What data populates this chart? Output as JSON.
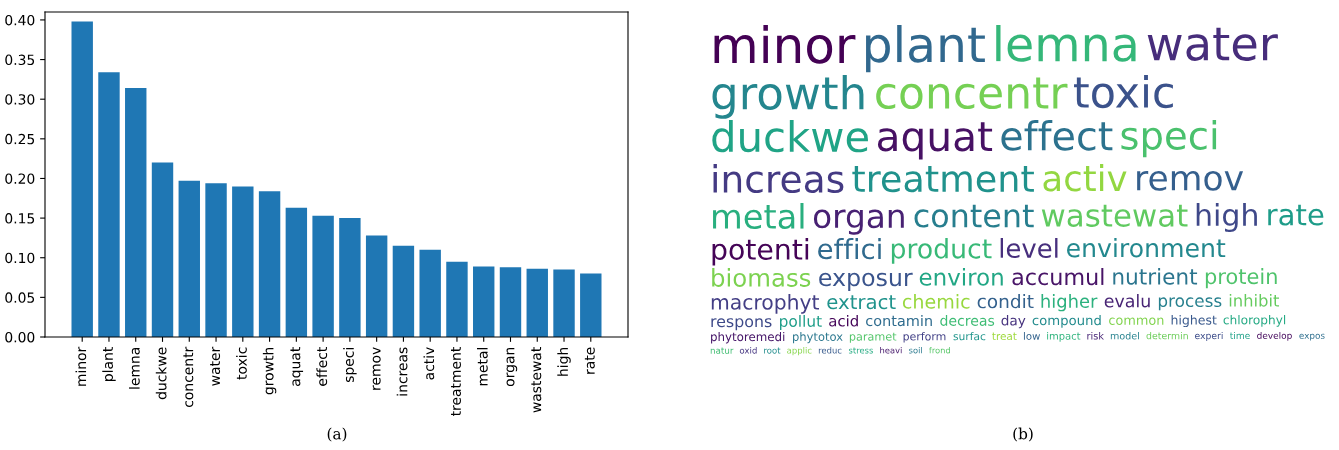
{
  "chart_data": [
    {
      "type": "bar",
      "categories": [
        "minor",
        "plant",
        "lemna",
        "duckwe",
        "concentr",
        "water",
        "toxic",
        "growth",
        "aquat",
        "effect",
        "speci",
        "remov",
        "increas",
        "activ",
        "treatment",
        "metal",
        "organ",
        "wastewat",
        "high",
        "rate"
      ],
      "values": [
        0.398,
        0.334,
        0.314,
        0.22,
        0.197,
        0.194,
        0.19,
        0.184,
        0.163,
        0.153,
        0.15,
        0.128,
        0.115,
        0.11,
        0.095,
        0.089,
        0.088,
        0.086,
        0.085,
        0.08
      ],
      "color": "#1f77b4",
      "ylim": [
        0,
        0.41
      ],
      "yticks": [
        {
          "value": 0,
          "label": "0.00"
        },
        {
          "value": 0.05,
          "label": "0.05"
        },
        {
          "value": 0.1,
          "label": "0.10"
        },
        {
          "value": 0.15,
          "label": "0.15"
        },
        {
          "value": 0.2,
          "label": "0.20"
        },
        {
          "value": 0.25,
          "label": "0.25"
        },
        {
          "value": 0.3,
          "label": "0.30"
        },
        {
          "value": 0.35,
          "label": "0.35"
        },
        {
          "value": 0.4,
          "label": "0.40"
        }
      ],
      "grid": false,
      "annotations": [
        "(a)"
      ]
    },
    {
      "type": "other",
      "annotations": [
        "minor",
        "plant",
        "lemna",
        "water",
        "growth",
        "concentr",
        "toxic",
        "duckwe",
        "aquat",
        "effect",
        "speci",
        "increas",
        "treatment",
        "activ",
        "remov",
        "metal",
        "organ",
        "content",
        "wastewat",
        "high",
        "rate",
        "potenti",
        "effici",
        "product",
        "level",
        "environment",
        "biomass",
        "exposur",
        "environ",
        "accumul",
        "nutrient",
        "protein",
        "macrophyt",
        "extract",
        "chemic",
        "condit",
        "higher",
        "evalu",
        "process",
        "inhibit",
        "respons",
        "pollut",
        "acid",
        "contamin",
        "decreas",
        "day",
        "compound",
        "common",
        "highest",
        "chlorophyl",
        "phytoremedi",
        "phytotox",
        "paramet",
        "perform",
        "surfac",
        "treat",
        "low",
        "impact",
        "risk",
        "model",
        "determin",
        "experi",
        "time",
        "develop",
        "expos",
        "natur",
        "oxid",
        "root",
        "applic",
        "reduc",
        "stress",
        "heavi",
        "soil",
        "frond",
        "(b)"
      ]
    }
  ]
}
